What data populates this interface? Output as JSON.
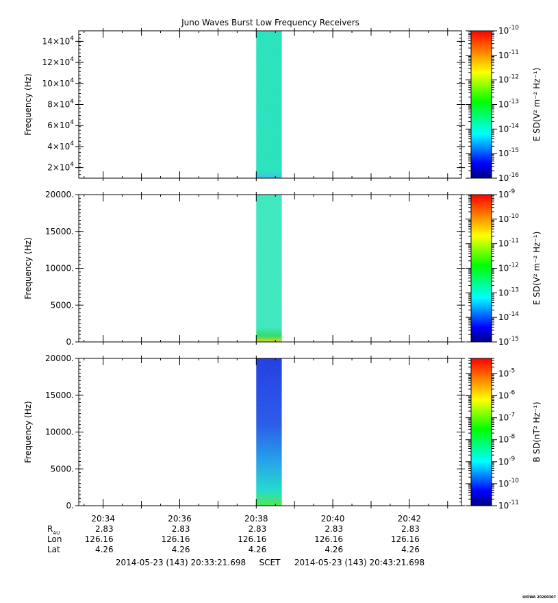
{
  "chart_data": {
    "type": "heatmap",
    "title": "Juno Waves Burst Low Frequency Receivers",
    "panels": [
      {
        "ylabel": "Frequency (Hz)",
        "y_tick_labels": [
          {
            "base": "2×10",
            "exp": "4",
            "value": 20000
          },
          {
            "base": "4×10",
            "exp": "4",
            "value": 40000
          },
          {
            "base": "6×10",
            "exp": "4",
            "value": 60000
          },
          {
            "base": "8×10",
            "exp": "4",
            "value": 80000
          },
          {
            "base": "10×10",
            "exp": "4",
            "value": 100000
          },
          {
            "base": "12×10",
            "exp": "4",
            "value": 120000
          },
          {
            "base": "14×10",
            "exp": "4",
            "value": 140000
          }
        ],
        "ylim": [
          10000,
          150000
        ],
        "data_time_range": [
          "20:38:00",
          "20:38:40"
        ],
        "colorbar": {
          "label": "E SD(V² m⁻² Hz⁻¹)",
          "log_range": [
            -16,
            -10
          ],
          "tick_exponents": [
            "-16",
            "-15",
            "-14",
            "-13",
            "-12",
            "-11",
            "-10"
          ]
        }
      },
      {
        "ylabel": "Frequency (Hz)",
        "y_tick_labels": [
          {
            "base": "0.",
            "exp": "",
            "value": 0
          },
          {
            "base": "5000.",
            "exp": "",
            "value": 5000
          },
          {
            "base": "10000.",
            "exp": "",
            "value": 10000
          },
          {
            "base": "15000.",
            "exp": "",
            "value": 15000
          },
          {
            "base": "20000.",
            "exp": "",
            "value": 20000
          }
        ],
        "ylim": [
          0,
          20000
        ],
        "data_time_range": [
          "20:38:00",
          "20:38:40"
        ],
        "colorbar": {
          "label": "E SD(V² m⁻² Hz⁻¹)",
          "log_range": [
            -15,
            -9
          ],
          "tick_exponents": [
            "-15",
            "-14",
            "-13",
            "-12",
            "-11",
            "-10",
            "-9"
          ]
        }
      },
      {
        "ylabel": "Frequency (Hz)",
        "y_tick_labels": [
          {
            "base": "0.",
            "exp": "",
            "value": 0
          },
          {
            "base": "5000.",
            "exp": "",
            "value": 5000
          },
          {
            "base": "10000.",
            "exp": "",
            "value": 10000
          },
          {
            "base": "15000.",
            "exp": "",
            "value": 15000
          },
          {
            "base": "20000.",
            "exp": "",
            "value": 20000
          }
        ],
        "ylim": [
          0,
          20000
        ],
        "data_time_range": [
          "20:38:00",
          "20:38:40"
        ],
        "colorbar": {
          "label": "B SD(nT² Hz⁻¹)",
          "log_range": [
            -11,
            -4.3
          ],
          "tick_exponents": [
            "-11",
            "-10",
            "-9",
            "-8",
            "-7",
            "-6",
            "-5"
          ]
        }
      }
    ],
    "xlim_minutes": [
      33.3616,
      43.3616
    ],
    "x_tick_labels": [
      {
        "label": "20:34",
        "minute": 34
      },
      {
        "label": "20:36",
        "minute": 36
      },
      {
        "label": "20:38",
        "minute": 38
      },
      {
        "label": "20:40",
        "minute": 40
      },
      {
        "label": "20:42",
        "minute": 42
      }
    ],
    "ephemeris": {
      "rows": [
        {
          "label": "R",
          "sub": "AU",
          "values": [
            "2.83",
            "2.83",
            "2.83",
            "2.83",
            "2.83"
          ]
        },
        {
          "label": "Lon",
          "sub": "",
          "values": [
            "126.16",
            "126.16",
            "126.16",
            "126.16",
            "126.16"
          ]
        },
        {
          "label": "Lat",
          "sub": "",
          "values": [
            "4.26",
            "4.26",
            "4.26",
            "4.26",
            "4.26"
          ]
        }
      ]
    },
    "time_span": {
      "start": "2014-05-23 (143) 20:33:21.698",
      "frame": "SCET",
      "end": "2014-05-23 (143) 20:43:21.698"
    },
    "footer_tag": "UIOWA 20200307"
  }
}
